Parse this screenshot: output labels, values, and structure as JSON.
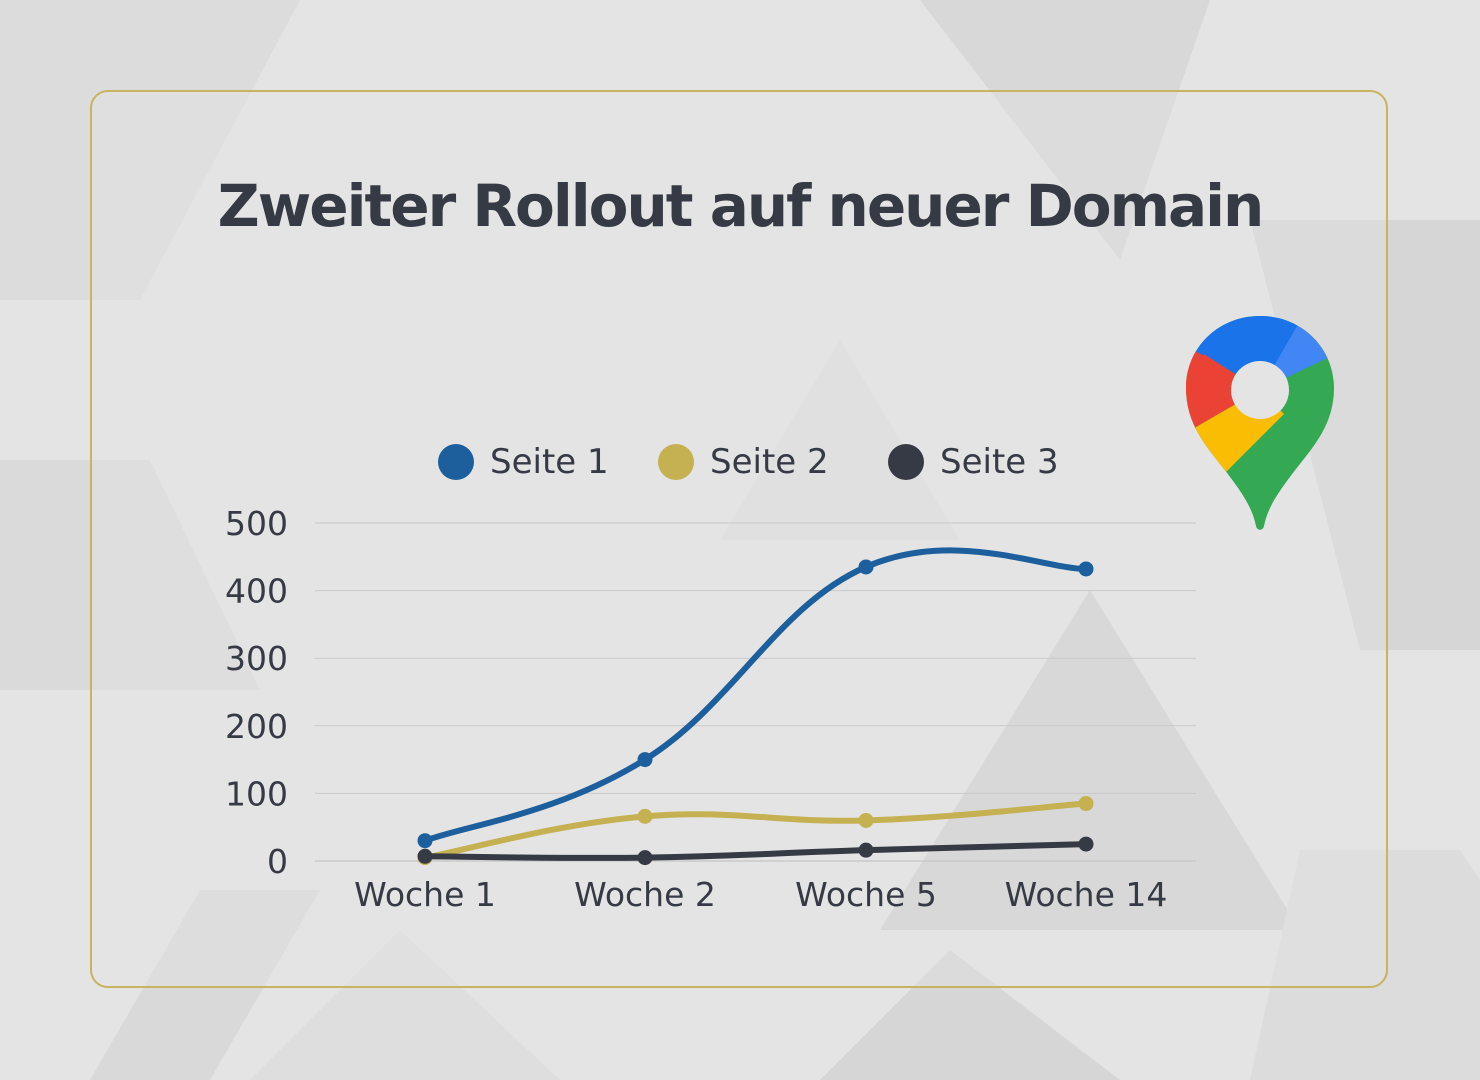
{
  "chart_data": {
    "type": "line",
    "title": "Zweiter Rollout auf neuer Domain",
    "categories": [
      "Woche 1",
      "Woche 2",
      "Woche 5",
      "Woche 14"
    ],
    "ylim": [
      0,
      500
    ],
    "yticks": [
      0,
      100,
      200,
      300,
      400,
      500
    ],
    "grid": true,
    "legend_position": "top",
    "smooth": true,
    "series": [
      {
        "name": "Seite 1",
        "color": "#1d5f9c",
        "values": [
          30,
          150,
          435,
          432
        ]
      },
      {
        "name": "Seite 2",
        "color": "#c5b052",
        "values": [
          5,
          66,
          60,
          85
        ]
      },
      {
        "name": "Seite 3",
        "color": "#363a45",
        "values": [
          7,
          5,
          16,
          25
        ]
      }
    ]
  },
  "colors": {
    "card_border": "#c8b35e",
    "grid": "#c9c9c9",
    "axis_text": "#363a45"
  },
  "icon": {
    "name": "google-maps-pin-icon"
  }
}
